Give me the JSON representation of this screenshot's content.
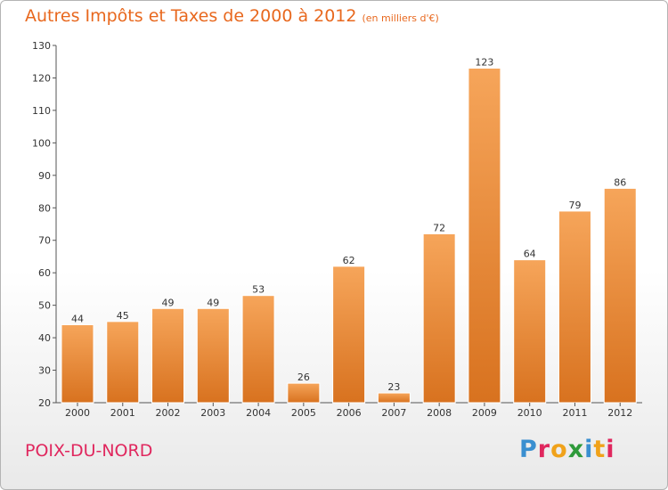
{
  "title": "Autres Impôts et Taxes de 2000 à 2012",
  "unit": "(en milliers d'€)",
  "location": "POIX-DU-NORD",
  "brand": {
    "text": "Proxiti",
    "letters": [
      {
        "ch": "P",
        "color": "#3a8fd0"
      },
      {
        "ch": "r",
        "color": "#e0275e"
      },
      {
        "ch": "o",
        "color": "#f0a21a"
      },
      {
        "ch": "x",
        "color": "#2e9a3a"
      },
      {
        "ch": "i",
        "color": "#3a8fd0"
      },
      {
        "ch": "t",
        "color": "#f0a21a"
      },
      {
        "ch": "i",
        "color": "#e0275e"
      }
    ]
  },
  "colors": {
    "accent": "#e8681e",
    "bar_top": "#f6a55a",
    "bar_bottom": "#d8721f",
    "location": "#e0275e"
  },
  "chart_data": {
    "type": "bar",
    "categories": [
      "2000",
      "2001",
      "2002",
      "2003",
      "2004",
      "2005",
      "2006",
      "2007",
      "2008",
      "2009",
      "2010",
      "2011",
      "2012"
    ],
    "values": [
      44,
      45,
      49,
      49,
      53,
      26,
      62,
      23,
      72,
      123,
      64,
      79,
      86
    ],
    "yticks": [
      20,
      30,
      40,
      50,
      60,
      70,
      80,
      90,
      100,
      110,
      120,
      130
    ],
    "ylim": [
      20,
      130
    ],
    "grid": false,
    "xlabel": "",
    "ylabel": ""
  }
}
